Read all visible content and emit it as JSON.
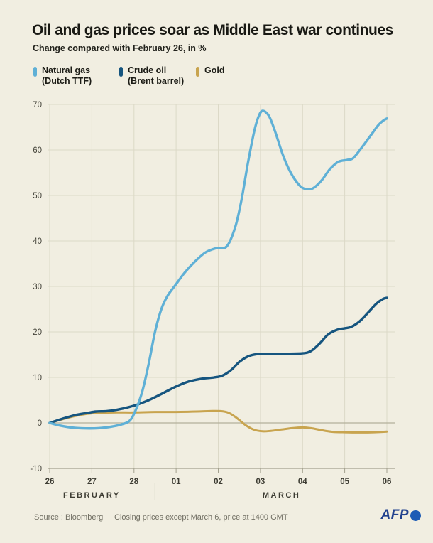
{
  "header": {
    "title": "Oil and gas prices soar as Middle East war continues",
    "subtitle": "Change compared with February 26, in %"
  },
  "legend": {
    "items": [
      {
        "label": "Natural gas",
        "sublabel": "(Dutch TTF)",
        "color": "#5fb0d6"
      },
      {
        "label": "Crude oil",
        "sublabel": "(Brent barrel)",
        "color": "#16557f"
      },
      {
        "label": "Gold",
        "sublabel": "",
        "color": "#c8a44f"
      }
    ]
  },
  "chart_data": {
    "type": "line",
    "title": "Oil and gas prices soar as Middle East war continues",
    "subtitle": "Change compared with February 26, in %",
    "xlabel": "",
    "ylabel": "Change compared with February 26, in %",
    "x_unit": "day index, 0 = February 26 ... 8 = March 06",
    "x_tick_labels": [
      "26",
      "27",
      "28",
      "01",
      "02",
      "03",
      "04",
      "05",
      "06"
    ],
    "month_labels": [
      {
        "label": "FEBRUARY",
        "span": [
          0,
          2
        ]
      },
      {
        "label": "MARCH",
        "span": [
          3,
          8
        ]
      }
    ],
    "month_divider_day": 2.5,
    "ylim": [
      -10,
      70
    ],
    "yticks": [
      -10,
      0,
      10,
      20,
      30,
      40,
      50,
      60,
      70
    ],
    "grid": true,
    "legend_position": "top",
    "colors": {
      "background": "#f1eee1",
      "gridline": "#dcd9c7",
      "zero_line": "#b3b09b",
      "axis": "#a3a08e",
      "tick_text": "#45443a"
    },
    "series": [
      {
        "id": "natural-gas",
        "name": "Natural gas (Dutch TTF)",
        "color": "#5fb0d6",
        "line_width": 3.4,
        "points": [
          [
            0,
            0
          ],
          [
            0.25,
            -0.6
          ],
          [
            0.55,
            -1.05
          ],
          [
            0.85,
            -1.2
          ],
          [
            1.15,
            -1.15
          ],
          [
            1.45,
            -0.85
          ],
          [
            1.7,
            -0.35
          ],
          [
            1.9,
            0.5
          ],
          [
            2.05,
            3
          ],
          [
            2.2,
            7
          ],
          [
            2.35,
            13
          ],
          [
            2.5,
            20
          ],
          [
            2.65,
            25
          ],
          [
            2.8,
            28
          ],
          [
            3.0,
            30.5
          ],
          [
            3.2,
            33
          ],
          [
            3.45,
            35.5
          ],
          [
            3.7,
            37.5
          ],
          [
            3.95,
            38.4
          ],
          [
            4.2,
            38.8
          ],
          [
            4.4,
            43
          ],
          [
            4.55,
            49
          ],
          [
            4.7,
            57
          ],
          [
            4.85,
            64
          ],
          [
            4.95,
            67.2
          ],
          [
            5.05,
            68.6
          ],
          [
            5.2,
            67.5
          ],
          [
            5.35,
            64
          ],
          [
            5.55,
            58.5
          ],
          [
            5.75,
            54.5
          ],
          [
            5.95,
            52
          ],
          [
            6.1,
            51.4
          ],
          [
            6.25,
            51.6
          ],
          [
            6.45,
            53.3
          ],
          [
            6.65,
            55.8
          ],
          [
            6.85,
            57.4
          ],
          [
            7.05,
            57.8
          ],
          [
            7.2,
            58.2
          ],
          [
            7.4,
            60.5
          ],
          [
            7.6,
            63
          ],
          [
            7.8,
            65.5
          ],
          [
            7.92,
            66.5
          ],
          [
            8,
            66.9
          ]
        ]
      },
      {
        "id": "crude-oil",
        "name": "Crude oil (Brent barrel)",
        "color": "#16557f",
        "line_width": 3.4,
        "points": [
          [
            0,
            0
          ],
          [
            0.3,
            0.9
          ],
          [
            0.6,
            1.7
          ],
          [
            0.9,
            2.2
          ],
          [
            1.1,
            2.5
          ],
          [
            1.35,
            2.6
          ],
          [
            1.6,
            2.9
          ],
          [
            1.85,
            3.4
          ],
          [
            2.1,
            4.1
          ],
          [
            2.4,
            5.2
          ],
          [
            2.7,
            6.6
          ],
          [
            3.0,
            8.0
          ],
          [
            3.3,
            9.1
          ],
          [
            3.6,
            9.7
          ],
          [
            3.9,
            10.0
          ],
          [
            4.1,
            10.4
          ],
          [
            4.3,
            11.6
          ],
          [
            4.5,
            13.4
          ],
          [
            4.7,
            14.6
          ],
          [
            4.9,
            15.1
          ],
          [
            5.2,
            15.2
          ],
          [
            5.6,
            15.2
          ],
          [
            6.0,
            15.3
          ],
          [
            6.2,
            15.8
          ],
          [
            6.4,
            17.4
          ],
          [
            6.6,
            19.4
          ],
          [
            6.8,
            20.4
          ],
          [
            7.0,
            20.8
          ],
          [
            7.15,
            21.1
          ],
          [
            7.35,
            22.3
          ],
          [
            7.55,
            24.2
          ],
          [
            7.75,
            26.2
          ],
          [
            7.9,
            27.2
          ],
          [
            8,
            27.5
          ]
        ]
      },
      {
        "id": "gold",
        "name": "Gold",
        "color": "#c8a44f",
        "line_width": 3,
        "points": [
          [
            0,
            0
          ],
          [
            0.3,
            0.8
          ],
          [
            0.6,
            1.5
          ],
          [
            0.9,
            2.0
          ],
          [
            1.2,
            2.2
          ],
          [
            1.6,
            2.3
          ],
          [
            2.0,
            2.3
          ],
          [
            2.5,
            2.4
          ],
          [
            3.0,
            2.4
          ],
          [
            3.5,
            2.5
          ],
          [
            3.8,
            2.6
          ],
          [
            4.05,
            2.6
          ],
          [
            4.25,
            2.2
          ],
          [
            4.45,
            1.0
          ],
          [
            4.65,
            -0.5
          ],
          [
            4.85,
            -1.5
          ],
          [
            5.05,
            -1.85
          ],
          [
            5.25,
            -1.75
          ],
          [
            5.5,
            -1.45
          ],
          [
            5.75,
            -1.15
          ],
          [
            6.0,
            -1.0
          ],
          [
            6.2,
            -1.15
          ],
          [
            6.45,
            -1.6
          ],
          [
            6.7,
            -1.95
          ],
          [
            7.0,
            -2.05
          ],
          [
            7.4,
            -2.1
          ],
          [
            7.7,
            -2.05
          ],
          [
            8,
            -1.9
          ]
        ]
      }
    ]
  },
  "footer": {
    "source": "Source : Bloomberg",
    "note": "Closing prices except March 6, price at 1400 GMT",
    "logo_text": "AFP"
  }
}
